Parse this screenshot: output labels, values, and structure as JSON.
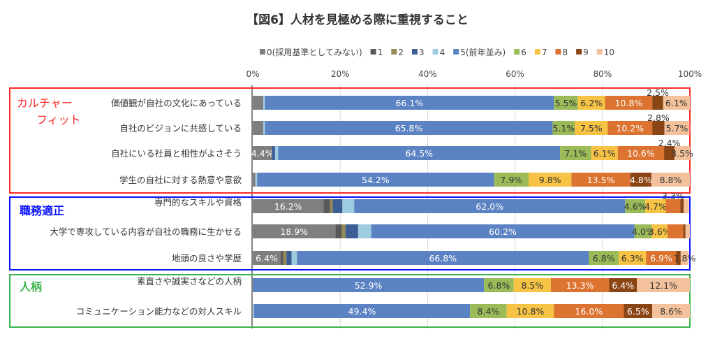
{
  "chart_data": {
    "type": "bar",
    "orientation": "horizontal",
    "stacked": true,
    "title": "【図6】人材を見極める際に重視すること",
    "xlim": [
      0,
      100
    ],
    "x_ticks": [
      "0%",
      "20%",
      "40%",
      "60%",
      "80%",
      "100%"
    ],
    "grid": true,
    "legend_position": "top",
    "legend": [
      "0(採用基準としてみない)",
      "1",
      "2",
      "3",
      "4",
      "5(前年並み)",
      "6",
      "7",
      "8",
      "9",
      "10"
    ],
    "colors": [
      "#7f7f7f",
      "#595959",
      "#948a54",
      "#3c5e94",
      "#9dcbdf",
      "#5b82c2",
      "#9bbb59",
      "#f6c344",
      "#dc7330",
      "#8a4515",
      "#f3c29c"
    ],
    "groups": [
      {
        "label": "カルチャーフィット",
        "label_lines": [
          "カルチャー",
          "フィット"
        ],
        "color": "#ff2a2a",
        "rows": [
          0,
          1,
          2,
          3
        ]
      },
      {
        "label": "職務適正",
        "label_lines": [
          "職務適正"
        ],
        "color": "#0a14ff",
        "rows": [
          4,
          5,
          6
        ]
      },
      {
        "label": "人柄",
        "label_lines": [
          "人柄"
        ],
        "color": "#3cb34a",
        "rows": [
          7,
          8
        ]
      }
    ],
    "categories": [
      "価値観が自社の文化にあっている",
      "自社のビジョンに共感している",
      "自社にいる社員と相性がよさそう",
      "学生の自社に対する熱意や意欲",
      "専門的なスキルや資格",
      "大学で専攻している内容が自社の職務に生かせる",
      "地頭の良さや学歴",
      "素直さや誠実さなどの人柄",
      "コミュニケーション能力などの対人スキル"
    ],
    "values": [
      [
        2.4,
        0,
        0,
        0,
        0.4,
        66.1,
        5.5,
        6.2,
        10.8,
        2.5,
        6.1
      ],
      [
        2.4,
        0,
        0,
        0,
        0.4,
        65.8,
        5.1,
        7.5,
        10.2,
        2.8,
        5.7
      ],
      [
        4.4,
        0,
        0,
        0.7,
        0.7,
        64.5,
        7.1,
        6.1,
        10.6,
        2.4,
        3.5
      ],
      [
        0.6,
        0,
        0,
        0,
        0.4,
        54.2,
        7.9,
        9.8,
        13.5,
        4.8,
        8.8
      ],
      [
        16.2,
        1.5,
        0.6,
        2.2,
        2.7,
        62.0,
        4.6,
        4.7,
        3.3,
        0.8,
        1.2
      ],
      [
        18.9,
        1.5,
        0.8,
        2.9,
        3.0,
        60.2,
        4.0,
        3.6,
        3.6,
        0.5,
        1.0
      ],
      [
        6.4,
        0.6,
        0.7,
        1.2,
        1.2,
        66.8,
        6.8,
        6.3,
        6.9,
        1.0,
        1.8
      ],
      [
        0,
        0,
        0,
        0,
        0,
        52.9,
        6.8,
        8.5,
        13.3,
        6.4,
        12.1
      ],
      [
        0,
        0,
        0,
        0,
        0.3,
        49.4,
        8.4,
        10.8,
        16.0,
        6.5,
        8.6
      ]
    ],
    "data_labels": [
      [
        "",
        "",
        "",
        "",
        "",
        "66.1%",
        "5.5%",
        "6.2%",
        "10.8%",
        "2.5%",
        "6.1%"
      ],
      [
        "",
        "",
        "",
        "",
        "",
        "65.8%",
        "5.1%",
        "7.5%",
        "10.2%",
        "2.8%",
        "5.7%"
      ],
      [
        "4.4%",
        "",
        "",
        "",
        "",
        "64.5%",
        "7.1%",
        "6.1%",
        "10.6%",
        "2.4%",
        "3.5%"
      ],
      [
        "",
        "",
        "",
        "",
        "",
        "54.2%",
        "7.9%",
        "9.8%",
        "13.5%",
        "4.8%",
        "8.8%"
      ],
      [
        "16.2%",
        "",
        "",
        "",
        "",
        "62.0%",
        "4.6%",
        "4.7%",
        "3.3%",
        "",
        ""
      ],
      [
        "18.9%",
        "",
        "",
        "",
        "",
        "60.2%",
        "4.0%",
        "3.6%",
        "",
        "",
        ""
      ],
      [
        "6.4%",
        "",
        "",
        "",
        "",
        "66.8%",
        "6.8%",
        "6.3%",
        "6.9%",
        "",
        "1.8%"
      ],
      [
        "",
        "",
        "",
        "",
        "",
        "52.9%",
        "6.8%",
        "8.5%",
        "13.3%",
        "6.4%",
        "12.1%"
      ],
      [
        "",
        "",
        "",
        "",
        "",
        "49.4%",
        "8.4%",
        "10.8%",
        "16.0%",
        "6.5%",
        "8.6%"
      ]
    ]
  }
}
